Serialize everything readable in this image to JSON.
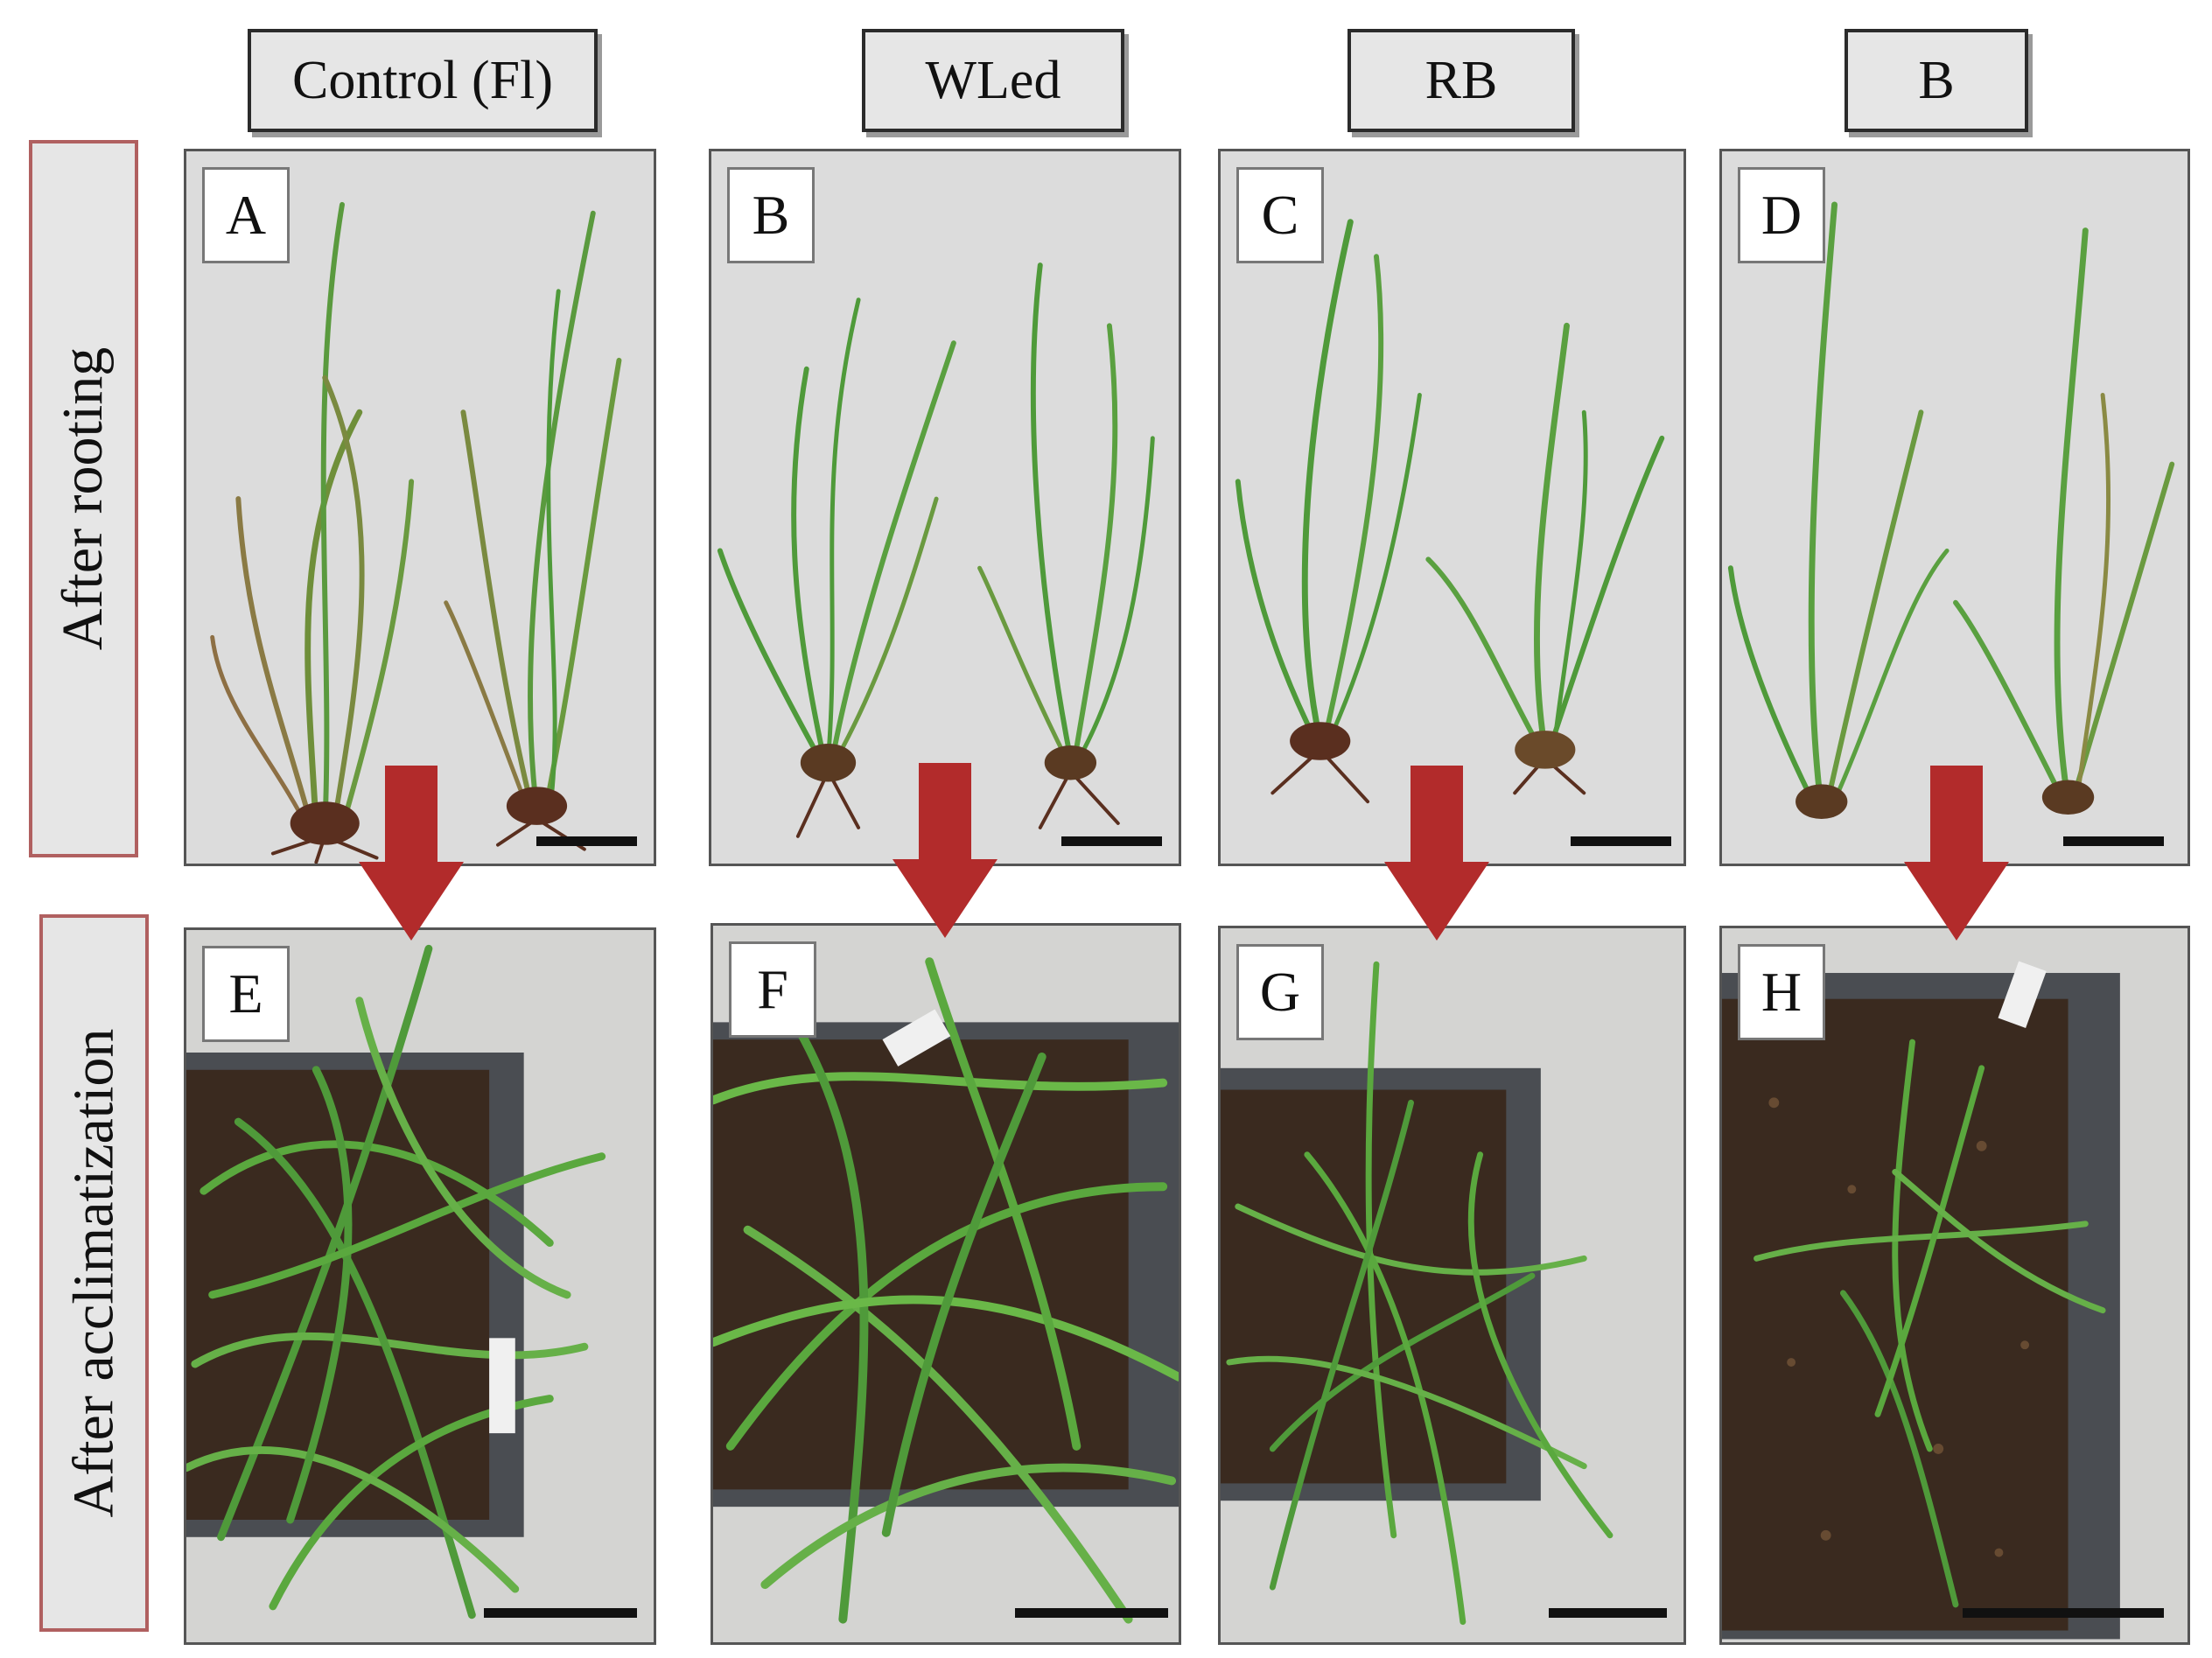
{
  "columns": [
    {
      "label": "Control (Fl)"
    },
    {
      "label": "WLed"
    },
    {
      "label": "RB"
    },
    {
      "label": "B"
    }
  ],
  "rows": [
    {
      "label": "After rooting"
    },
    {
      "label": "After acclimatization"
    }
  ],
  "panels": {
    "A": "A",
    "B": "B",
    "C": "C",
    "D": "D",
    "E": "E",
    "F": "F",
    "G": "G",
    "H": "H"
  },
  "colors": {
    "arrow": "#b22b2b",
    "leaf_green": "#4d9a3a",
    "root_brown": "#5a2f1f",
    "soil": "#3a2a1f",
    "tray": "#3c3f44"
  }
}
